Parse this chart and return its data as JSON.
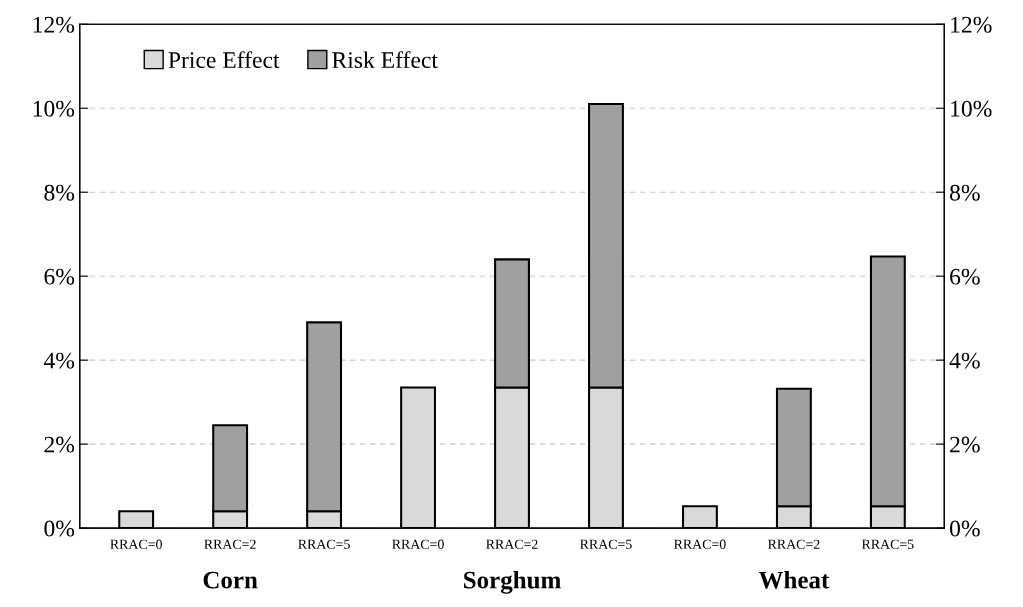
{
  "chart_data": {
    "type": "bar",
    "stacked": true,
    "categories": [
      "RRAC=0",
      "RRAC=2",
      "RRAC=5",
      "RRAC=0",
      "RRAC=2",
      "RRAC=5",
      "RRAC=0",
      "RRAC=2",
      "RRAC=5"
    ],
    "series": [
      {
        "name": "Price Effect",
        "color": "#d9d9d9",
        "values": [
          0.4,
          0.4,
          0.4,
          3.35,
          3.35,
          3.35,
          0.52,
          0.52,
          0.52
        ]
      },
      {
        "name": "Risk Effect",
        "color": "#a0a0a0",
        "values": [
          0,
          2.05,
          4.5,
          0,
          3.05,
          6.75,
          0,
          2.8,
          5.95
        ]
      }
    ],
    "annotations": [
      "Corn",
      "Sorghum",
      "Wheat"
    ],
    "ylim": [
      0,
      12
    ],
    "yticks": [
      {
        "value": 0,
        "label": "0%"
      },
      {
        "value": 2,
        "label": "2%"
      },
      {
        "value": 4,
        "label": "4%"
      },
      {
        "value": 6,
        "label": "6%"
      },
      {
        "value": 8,
        "label": "8%"
      },
      {
        "value": 10,
        "label": "10%"
      },
      {
        "value": 12,
        "label": "12%"
      }
    ],
    "y2lim": [
      0,
      12
    ],
    "y2ticks": [
      {
        "value": 0,
        "label": "0%"
      },
      {
        "value": 2,
        "label": "2%"
      },
      {
        "value": 4,
        "label": "4%"
      },
      {
        "value": 6,
        "label": "6%"
      },
      {
        "value": 8,
        "label": "8%"
      },
      {
        "value": 10,
        "label": "10%"
      },
      {
        "value": 12,
        "label": "12%"
      }
    ],
    "grid": "y",
    "legend": "top left"
  }
}
